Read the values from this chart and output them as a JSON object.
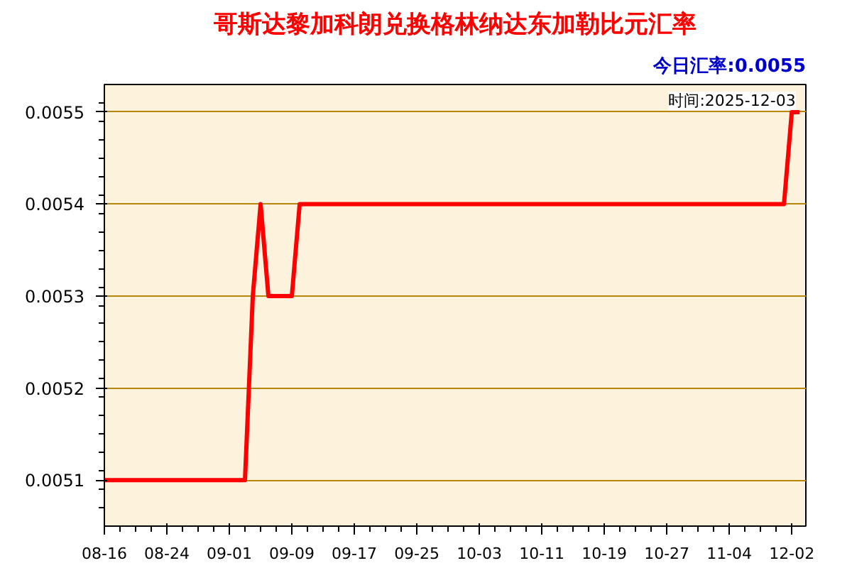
{
  "chart_data": {
    "type": "line",
    "title": "哥斯达黎加科朗兑换格林纳达东加勒比元汇率",
    "annotations": [
      "今日汇率:0.0055",
      "时间:2025-12-03"
    ],
    "categories": [
      "08-16",
      null,
      null,
      null,
      null,
      null,
      null,
      null,
      "08-24",
      null,
      null,
      null,
      null,
      null,
      null,
      null,
      "09-01",
      null,
      null,
      null,
      null,
      null,
      null,
      null,
      "09-09",
      null,
      null,
      null,
      null,
      null,
      null,
      null,
      "09-17",
      null,
      null,
      null,
      null,
      null,
      null,
      null,
      "09-25",
      null,
      null,
      null,
      null,
      null,
      null,
      null,
      "10-03",
      null,
      null,
      null,
      null,
      null,
      null,
      null,
      "10-11",
      null,
      null,
      null,
      null,
      null,
      null,
      null,
      "10-19",
      null,
      null,
      null,
      null,
      null,
      null,
      null,
      "10-27",
      null,
      null,
      null,
      null,
      null,
      null,
      null,
      "11-04",
      null,
      null,
      null,
      null,
      null,
      null,
      null,
      "12-02",
      null
    ],
    "series": [
      {
        "color": "#ff0000",
        "values": [
          0.0051,
          0.0051,
          0.0051,
          0.0051,
          0.0051,
          0.0051,
          0.0051,
          0.0051,
          0.0051,
          0.0051,
          0.0051,
          0.0051,
          0.0051,
          0.0051,
          0.0051,
          0.0051,
          0.0051,
          0.0051,
          0.0051,
          0.0053,
          0.0054,
          0.0053,
          0.0053,
          0.0053,
          0.0053,
          0.0054,
          0.0054,
          0.0054,
          0.0054,
          0.0054,
          0.0054,
          0.0054,
          0.0054,
          0.0054,
          0.0054,
          0.0054,
          0.0054,
          0.0054,
          0.0054,
          0.0054,
          0.0054,
          0.0054,
          0.0054,
          0.0054,
          0.0054,
          0.0054,
          0.0054,
          0.0054,
          0.0054,
          0.0054,
          0.0054,
          0.0054,
          0.0054,
          0.0054,
          0.0054,
          0.0054,
          0.0054,
          0.0054,
          0.0054,
          0.0054,
          0.0054,
          0.0054,
          0.0054,
          0.0054,
          0.0054,
          0.0054,
          0.0054,
          0.0054,
          0.0054,
          0.0054,
          0.0054,
          0.0054,
          0.0054,
          0.0054,
          0.0054,
          0.0054,
          0.0054,
          0.0054,
          0.0054,
          0.0054,
          0.0054,
          0.0054,
          0.0054,
          0.0054,
          0.0054,
          0.0054,
          0.0054,
          0.0054,
          0.0055,
          0.0055
        ]
      }
    ],
    "ylim": [
      0.00505,
      0.00553
    ],
    "yticks": [
      0.0051,
      0.0052,
      0.0053,
      0.0054,
      0.0055
    ],
    "grid": "y",
    "marker": "none",
    "line_style": "solid"
  }
}
